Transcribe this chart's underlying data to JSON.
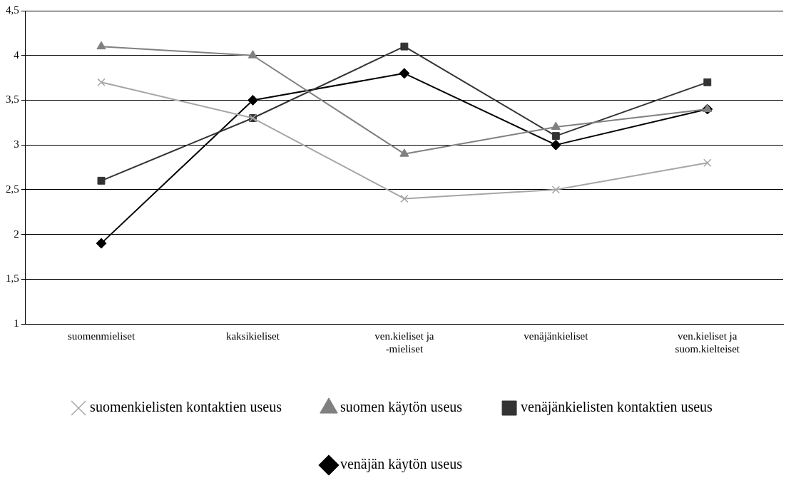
{
  "chart_data": {
    "type": "line",
    "categories": [
      "suomenmieliset",
      "kaksikieliset",
      "ven.kieliset ja -mieliset",
      "venäjänkieliset",
      "ven.kieliset ja suom.kielteiset"
    ],
    "series": [
      {
        "name": "venäjän käytön useus",
        "color": "#000000",
        "marker": "diamond",
        "values": [
          1.9,
          3.5,
          3.8,
          3.0,
          3.4
        ]
      },
      {
        "name": "venäjänkielisten kontaktien useus",
        "color": "#333333",
        "marker": "square",
        "values": [
          2.6,
          3.3,
          4.1,
          3.1,
          3.7
        ]
      },
      {
        "name": "suomen käytön useus",
        "color": "#808080",
        "marker": "triangle",
        "values": [
          4.1,
          4.0,
          2.9,
          3.2,
          3.4
        ]
      },
      {
        "name": "suomenkielisten kontaktien useus",
        "color": "#a6a6a6",
        "marker": "cross",
        "values": [
          3.7,
          3.3,
          2.4,
          2.5,
          2.8
        ]
      }
    ],
    "ylim": [
      1,
      4.5
    ],
    "yticks": [
      1,
      {
        "value": 1.5,
        "label": "1,5"
      },
      2,
      {
        "value": 2.5,
        "label": "2,5"
      },
      3,
      {
        "value": 3.5,
        "label": "3,5"
      },
      4,
      {
        "value": 4.5,
        "label": "4,5"
      }
    ],
    "grid": "y",
    "legend": "bottom",
    "line_style": "solid"
  }
}
